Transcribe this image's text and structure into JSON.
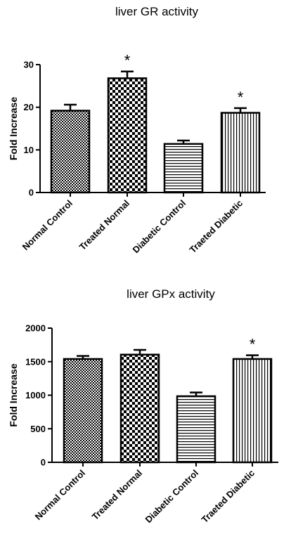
{
  "chart_data": [
    {
      "type": "bar",
      "title": "liver GR activity",
      "xlabel": "",
      "ylabel": "Fold Increase",
      "ylim": [
        0,
        30
      ],
      "yticks": [
        0,
        10,
        20,
        30
      ],
      "categories": [
        "Normal Control",
        "Treated Normal",
        "Diabetic Control",
        "Traeted Diabetic"
      ],
      "values": [
        19.2,
        26.8,
        11.4,
        18.7
      ],
      "errors": [
        1.4,
        1.6,
        0.8,
        1.1
      ],
      "significance": [
        "",
        "*",
        "",
        "*"
      ],
      "patterns": [
        "fine-check",
        "checker",
        "hlines",
        "vlines"
      ],
      "grid": false,
      "legend": "none"
    },
    {
      "type": "bar",
      "title": "liver GPx activity",
      "xlabel": "",
      "ylabel": "Fold Increase",
      "ylim": [
        0,
        2000
      ],
      "yticks": [
        0,
        500,
        1000,
        1500,
        2000
      ],
      "categories": [
        "Normal Control",
        "Treated Normal",
        "Diabetic Control",
        "Traeted Diabetic"
      ],
      "values": [
        1540,
        1605,
        985,
        1540
      ],
      "errors": [
        45,
        70,
        55,
        55
      ],
      "significance": [
        "",
        "",
        "",
        "*"
      ],
      "patterns": [
        "fine-check",
        "checker",
        "hlines",
        "vlines"
      ],
      "grid": false,
      "legend": "none"
    }
  ]
}
